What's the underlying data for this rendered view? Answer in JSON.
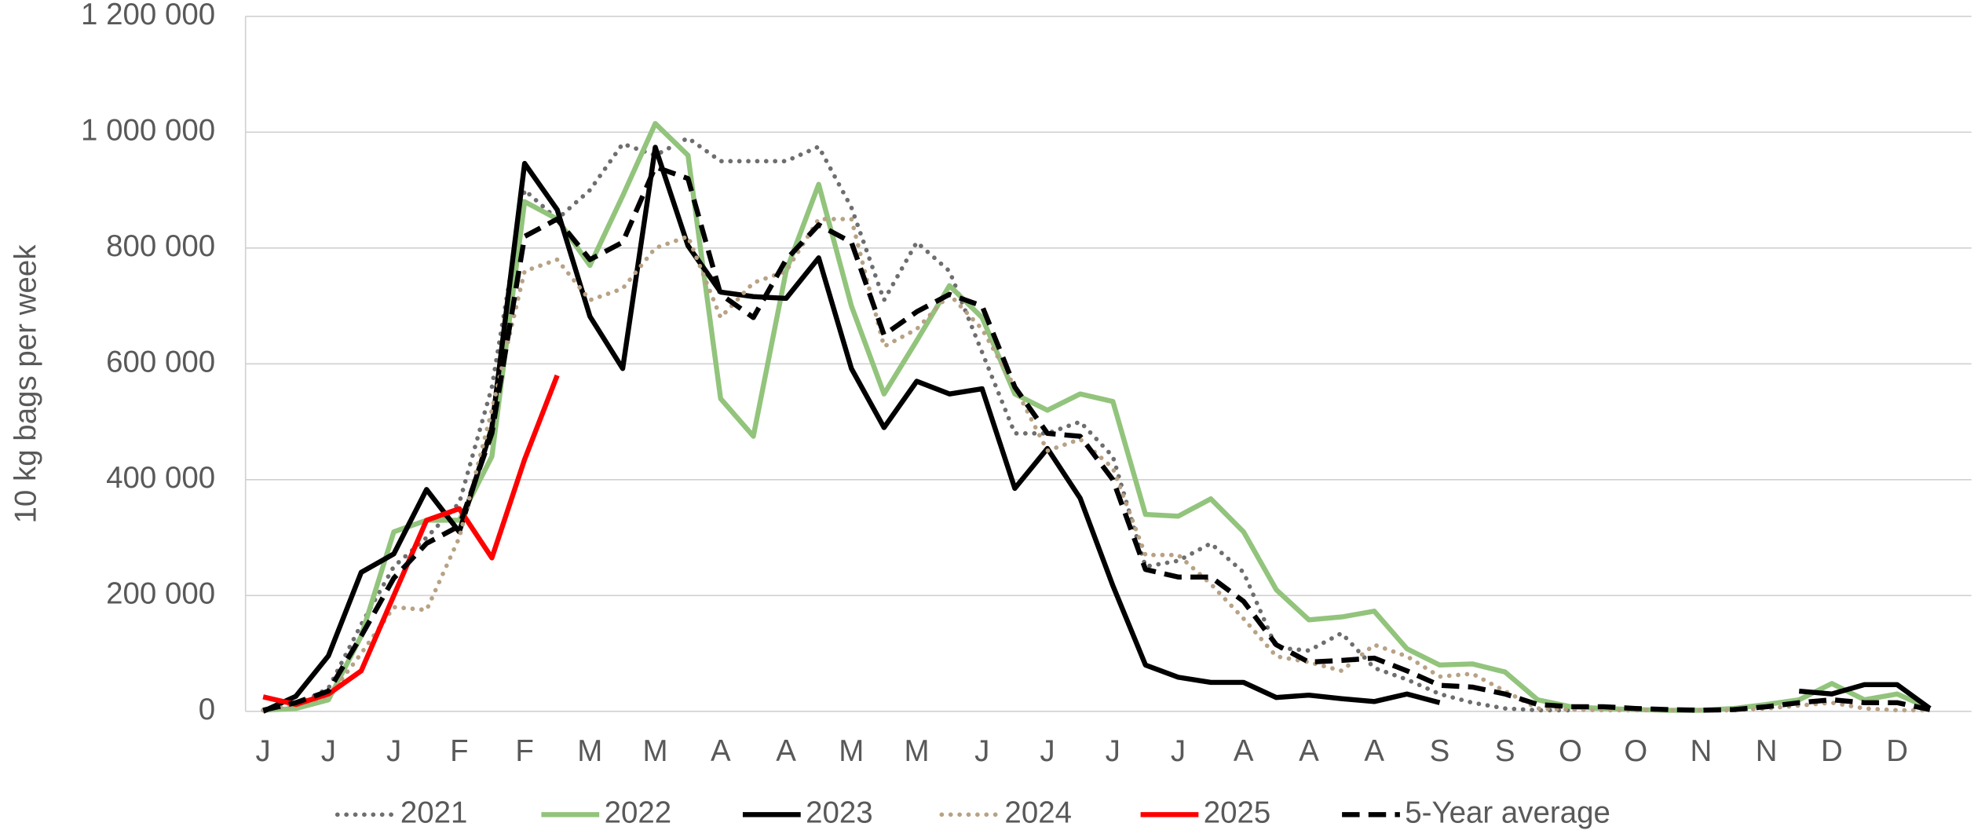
{
  "chart_data": {
    "type": "line",
    "y_label": "10 kg bags per week",
    "categories": [
      "J",
      null,
      "J",
      null,
      "J",
      null,
      "F",
      null,
      "F",
      null,
      "M",
      null,
      "M",
      null,
      "A",
      null,
      "A",
      null,
      "M",
      null,
      "M",
      null,
      "J",
      null,
      "J",
      null,
      "J",
      null,
      "J",
      null,
      "A",
      null,
      "A",
      null,
      "A",
      null,
      "S",
      null,
      "S",
      null,
      "O",
      null,
      "O",
      null,
      "N",
      null,
      "N",
      null,
      "D",
      null,
      "D",
      null
    ],
    "ylim": [
      0,
      1200000
    ],
    "yticks": [
      0,
      {
        "value": 200000,
        "label": "200 000"
      },
      {
        "value": 400000,
        "label": "400 000"
      },
      {
        "value": 600000,
        "label": "600 000"
      },
      {
        "value": 800000,
        "label": "800 000"
      },
      {
        "value": 1000000,
        "label": "1 000 000"
      },
      {
        "value": 1200000,
        "label": "1 200 000"
      }
    ],
    "grid": true,
    "legend": "bottom",
    "series": [
      {
        "name": "2021",
        "color": "#6e6e6e",
        "style": "dotted",
        "values": [
          2000,
          10000,
          40000,
          150000,
          250000,
          300000,
          360000,
          560000,
          900000,
          850000,
          900000,
          980000,
          960000,
          990000,
          950000,
          950000,
          950000,
          975000,
          870000,
          710000,
          810000,
          760000,
          620000,
          480000,
          480000,
          500000,
          440000,
          250000,
          260000,
          290000,
          240000,
          110000,
          105000,
          135000,
          75000,
          55000,
          30000,
          15000,
          5000,
          2000,
          2000,
          null,
          null,
          null,
          null,
          null,
          null,
          null,
          null,
          null,
          null,
          null
        ]
      },
      {
        "name": "2022",
        "color": "#92c47c",
        "style": "solid",
        "values": [
          2000,
          5000,
          20000,
          130000,
          310000,
          330000,
          330000,
          440000,
          880000,
          850000,
          770000,
          890000,
          1015000,
          960000,
          540000,
          475000,
          760000,
          910000,
          700000,
          548000,
          640000,
          735000,
          680000,
          548000,
          520000,
          548000,
          535000,
          340000,
          337000,
          367000,
          310000,
          210000,
          158000,
          163000,
          173000,
          108000,
          80000,
          82000,
          68000,
          20000,
          8000,
          5000,
          3000,
          2000,
          2000,
          5000,
          12000,
          20000,
          48000,
          20000,
          30000,
          5000
        ]
      },
      {
        "name": "2023",
        "color": "#000000",
        "style": "solid",
        "values": [
          0,
          26000,
          96000,
          240000,
          272000,
          383000,
          310000,
          490000,
          946000,
          866000,
          682000,
          592000,
          974000,
          804000,
          724000,
          716000,
          713000,
          783000,
          592000,
          490000,
          570000,
          548000,
          557000,
          385000,
          454000,
          368000,
          217000,
          80000,
          59000,
          50000,
          50000,
          24000,
          28000,
          22000,
          17000,
          30000,
          15000,
          null,
          null,
          null,
          null,
          null,
          null,
          null,
          null,
          null,
          null,
          35000,
          30000,
          46000,
          46000,
          5000
        ]
      },
      {
        "name": "2024",
        "color": "#b8a285",
        "style": "dotted",
        "values": [
          2000,
          10000,
          25000,
          100000,
          180000,
          175000,
          300000,
          520000,
          760000,
          780000,
          710000,
          730000,
          800000,
          820000,
          680000,
          740000,
          760000,
          850000,
          850000,
          630000,
          660000,
          720000,
          660000,
          560000,
          450000,
          470000,
          420000,
          270000,
          270000,
          220000,
          160000,
          95000,
          85000,
          70000,
          115000,
          95000,
          60000,
          65000,
          35000,
          5000,
          3000,
          2000,
          2000,
          2000,
          2000,
          2000,
          5000,
          10000,
          15000,
          5000,
          2000,
          2000
        ]
      },
      {
        "name": "2025",
        "color": "#ff0000",
        "style": "solid",
        "values": [
          25000,
          12000,
          30000,
          70000,
          200000,
          330000,
          350000,
          265000,
          435000,
          580000,
          null,
          null,
          null,
          null,
          null,
          null,
          null,
          null,
          null,
          null,
          null,
          null,
          null,
          null,
          null,
          null,
          null,
          null,
          null,
          null,
          null,
          null,
          null,
          null,
          null,
          null,
          null,
          null,
          null,
          null,
          null,
          null,
          null,
          null,
          null,
          null,
          null,
          null,
          null,
          null,
          null,
          null
        ]
      },
      {
        "name": "5-Year average",
        "color": "#000000",
        "style": "dashed",
        "values": [
          2000,
          15000,
          35000,
          130000,
          230000,
          290000,
          320000,
          480000,
          820000,
          850000,
          780000,
          810000,
          940000,
          920000,
          720000,
          680000,
          780000,
          840000,
          810000,
          650000,
          690000,
          720000,
          700000,
          560000,
          480000,
          475000,
          400000,
          245000,
          232000,
          232000,
          190000,
          115000,
          85000,
          88000,
          92000,
          70000,
          45000,
          42000,
          30000,
          12000,
          8000,
          8000,
          5000,
          3000,
          2000,
          3000,
          8000,
          15000,
          20000,
          15000,
          15000,
          3000
        ]
      }
    ]
  }
}
